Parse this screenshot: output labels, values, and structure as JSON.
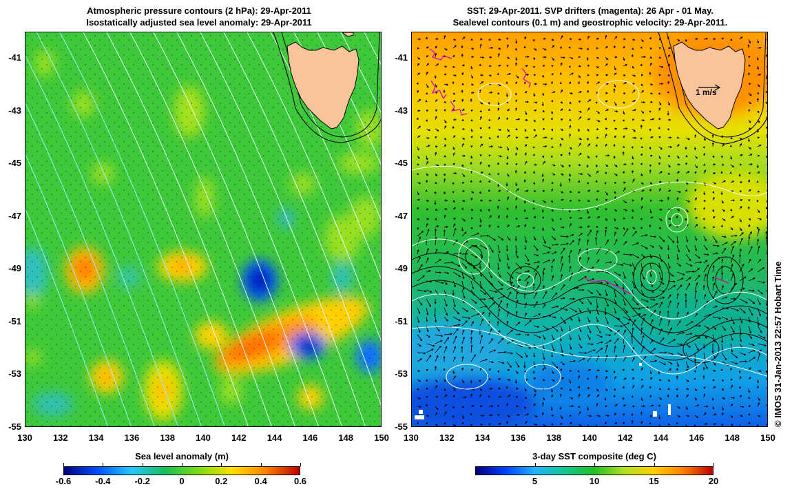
{
  "left_panel": {
    "title_line1": "Atmospheric pressure contours (2 hPa): 29-Apr-2011",
    "title_line2": "Isostatically adjusted sea level anomaly: 29-Apr-2011",
    "x_ticks": [
      "130",
      "132",
      "134",
      "136",
      "138",
      "140",
      "142",
      "144",
      "146",
      "148",
      "150"
    ],
    "y_ticks": [
      "-41",
      "-43",
      "-45",
      "-47",
      "-49",
      "-51",
      "-53",
      "-55"
    ],
    "colorbar_title": "Sea level anomaly (m)",
    "colorbar_ticks": [
      "-0.6",
      "-0.4",
      "-0.2",
      "0",
      "0.2",
      "0.4",
      "0.6"
    ],
    "colorbar_colors": [
      "#00007f",
      "#0050ff",
      "#22c8ff",
      "#15c058",
      "#7bdc10",
      "#ffe000",
      "#ff8000",
      "#c00000"
    ]
  },
  "right_panel": {
    "title_line1": "SST: 29-Apr-2011. SVP drifters (magenta): 26 Apr - 01 May.",
    "title_line2": "Sealevel contours (0.1 m) and geostrophic velocity: 29-Apr-2011.",
    "x_ticks": [
      "130",
      "132",
      "134",
      "136",
      "138",
      "140",
      "142",
      "144",
      "146",
      "148",
      "150"
    ],
    "y_ticks": [
      "-41",
      "-43",
      "-45",
      "-47",
      "-49",
      "-51",
      "-53",
      "-55"
    ],
    "colorbar_title": "3-day SST composite (deg C)",
    "colorbar_ticks": [
      "5",
      "10",
      "15",
      "20"
    ],
    "velocity_scale_label": "1 m/s",
    "colorbar_colors": [
      "#00007f",
      "#0040ff",
      "#20b4ff",
      "#10c890",
      "#20c020",
      "#b0e020",
      "#ffd000",
      "#ff8000",
      "#c00000"
    ]
  },
  "map_extent": {
    "lon": [
      130,
      150
    ],
    "lat": [
      -55,
      -40
    ]
  },
  "credit": "© IMOS 31-Jan-2013 22:57 Hobart Time",
  "colors": {
    "land": "#f9c49a",
    "ocean_green": "#2fc23a",
    "pressure_contour": "#d8f4ff",
    "drifter": "#e000c8"
  }
}
